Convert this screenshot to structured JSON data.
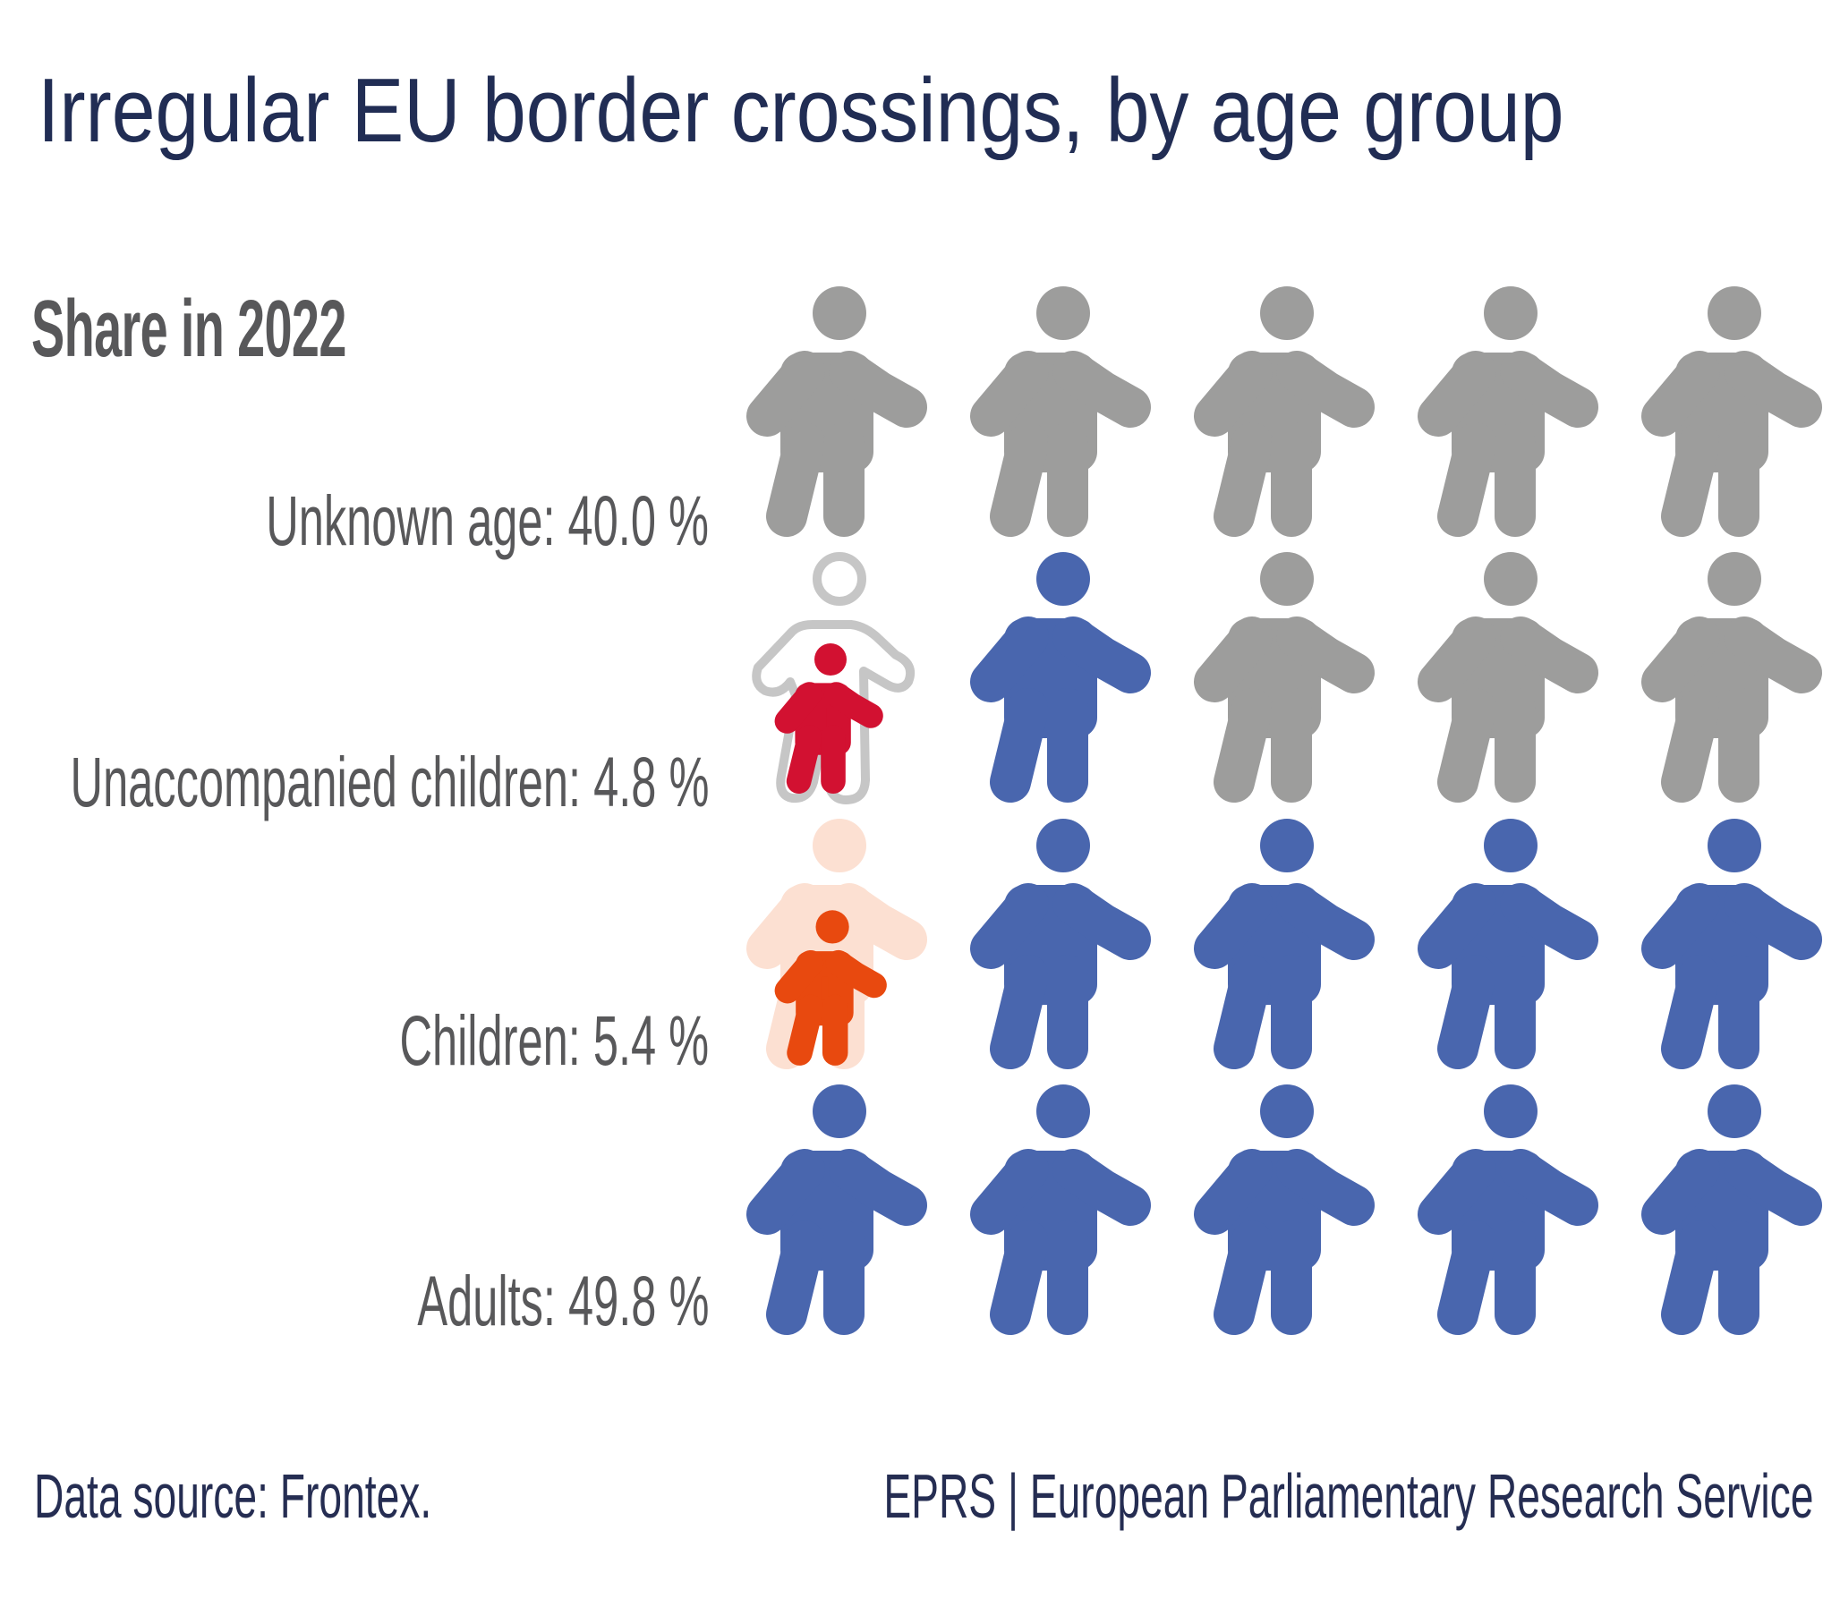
{
  "title": "Irregular EU border crossings, by age group",
  "subtitle": "Share in 2022",
  "labels": [
    {
      "text": "Unknown age: 40.0 %"
    },
    {
      "text": "Unaccompanied children: 4.8 %"
    },
    {
      "text": "Children: 5.4 %"
    },
    {
      "text": "Adults: 49.8 %"
    }
  ],
  "footer": {
    "source": "Data source: Frontex.",
    "credit": "EPRS | European Parliamentary Research Service"
  },
  "colors": {
    "unknown": "#9d9d9c",
    "adult": "#4966ae",
    "unaccompanied_child": "#d21131",
    "unaccompanied_outline": "#c6c6c6",
    "child": "#e8490f",
    "child_parent": "#fce0d2",
    "title": "#212d54",
    "label": "#58585a"
  },
  "icon_grid": {
    "columns": 5,
    "rows": [
      [
        "unknown",
        "unknown",
        "unknown",
        "unknown",
        "unknown"
      ],
      [
        "unaccompanied",
        "adult",
        "unknown",
        "unknown",
        "unknown"
      ],
      [
        "child",
        "adult",
        "adult",
        "adult",
        "adult"
      ],
      [
        "adult",
        "adult",
        "adult",
        "adult",
        "adult"
      ]
    ]
  },
  "chart_data": {
    "type": "pie",
    "title": "Irregular EU border crossings, by age group",
    "subtitle": "Share in 2022",
    "categories": [
      "Unknown age",
      "Unaccompanied children",
      "Children",
      "Adults"
    ],
    "values": [
      40.0,
      4.8,
      5.4,
      49.8
    ],
    "unit": "%",
    "representation": "pictogram grid, 20 icons (5 per row), each icon = 5 %",
    "icon_counts": {
      "Unknown age": 8,
      "Unaccompanied children": 1,
      "Children": 1,
      "Adults": 10
    },
    "source": "Frontex"
  }
}
